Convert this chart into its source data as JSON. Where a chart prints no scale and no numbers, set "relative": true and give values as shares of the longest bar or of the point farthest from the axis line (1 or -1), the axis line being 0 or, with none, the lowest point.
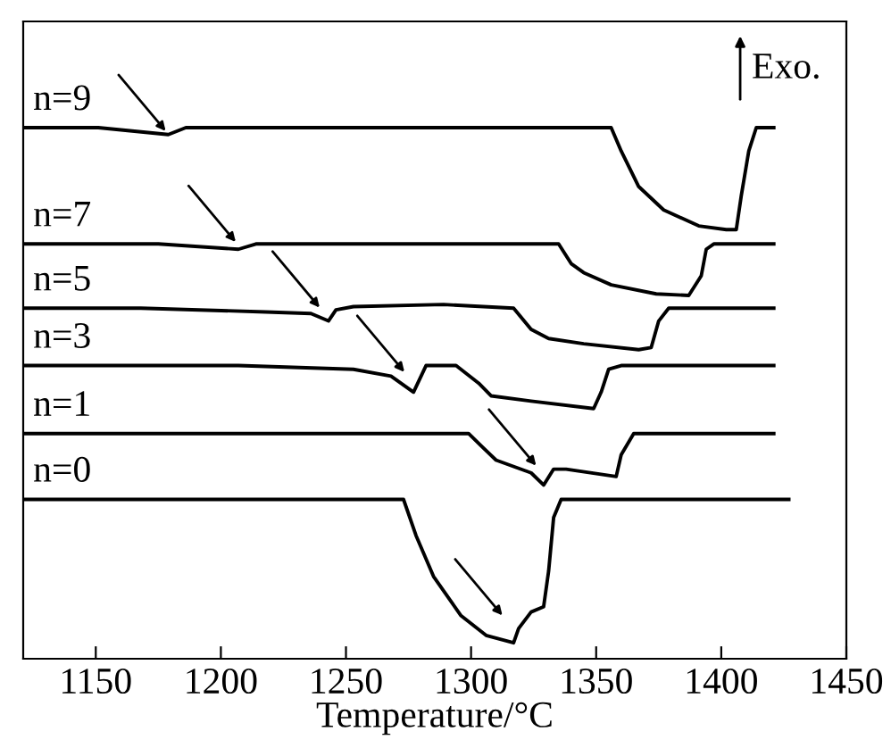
{
  "chart_data": {
    "type": "line",
    "relative": true,
    "xlabel": "Temperature/°C",
    "xlim": [
      1121,
      1450
    ],
    "xticks": [
      1150,
      1200,
      1250,
      1300,
      1350,
      1400,
      1450
    ],
    "tick_labels": "x",
    "grid": false,
    "marker": "none",
    "line_style": "solid",
    "series": [
      {
        "name": "n=9",
        "color": "#000000",
        "x": [
          1121,
          1151,
          1179,
          1186,
          1356,
          1360,
          1367,
          1377,
          1391,
          1402,
          1406,
          1408,
          1411,
          1414,
          1421
        ],
        "values": [
          1.0,
          1.0,
          0.987,
          1.0,
          1.0,
          0.956,
          0.889,
          0.845,
          0.815,
          0.808,
          0.808,
          0.872,
          0.956,
          1.0,
          1.0
        ]
      },
      {
        "name": "n=7",
        "color": "#000000",
        "x": [
          1121,
          1175,
          1207,
          1214,
          1335,
          1340,
          1345,
          1356,
          1374,
          1387,
          1392,
          1394,
          1397,
          1421
        ],
        "values": [
          0.781,
          0.781,
          0.771,
          0.781,
          0.781,
          0.744,
          0.727,
          0.704,
          0.687,
          0.684,
          0.721,
          0.771,
          0.781,
          0.781
        ]
      },
      {
        "name": "n=5",
        "color": "#000000",
        "x": [
          1121,
          1168,
          1218,
          1236,
          1243,
          1246,
          1253,
          1289,
          1317,
          1324,
          1331,
          1345,
          1367,
          1372,
          1375,
          1379,
          1421
        ],
        "values": [
          0.66,
          0.66,
          0.653,
          0.65,
          0.636,
          0.657,
          0.663,
          0.667,
          0.66,
          0.62,
          0.603,
          0.593,
          0.582,
          0.586,
          0.636,
          0.66,
          0.66
        ]
      },
      {
        "name": "n=3",
        "color": "#000000",
        "x": [
          1121,
          1207,
          1253,
          1268,
          1277,
          1282,
          1294,
          1303,
          1308,
          1324,
          1349,
          1352,
          1355,
          1360,
          1421
        ],
        "values": [
          0.552,
          0.552,
          0.545,
          0.532,
          0.502,
          0.552,
          0.552,
          0.519,
          0.495,
          0.485,
          0.471,
          0.502,
          0.545,
          0.552,
          0.552
        ]
      },
      {
        "name": "n=1",
        "color": "#000000",
        "x": [
          1121,
          1299,
          1304,
          1310,
          1324,
          1329,
          1333,
          1338,
          1358,
          1360,
          1365,
          1421
        ],
        "values": [
          0.424,
          0.424,
          0.401,
          0.374,
          0.35,
          0.327,
          0.357,
          0.357,
          0.343,
          0.384,
          0.424,
          0.424
        ]
      },
      {
        "name": "n=0",
        "color": "#000000",
        "x": [
          1121,
          1273,
          1278,
          1285,
          1296,
          1306,
          1317,
          1319,
          1324,
          1329,
          1331,
          1333,
          1336,
          1427
        ],
        "values": [
          0.3,
          0.3,
          0.232,
          0.155,
          0.081,
          0.044,
          0.03,
          0.057,
          0.088,
          0.098,
          0.165,
          0.266,
          0.3,
          0.3
        ]
      }
    ],
    "annotations": [
      "Exo."
    ]
  }
}
